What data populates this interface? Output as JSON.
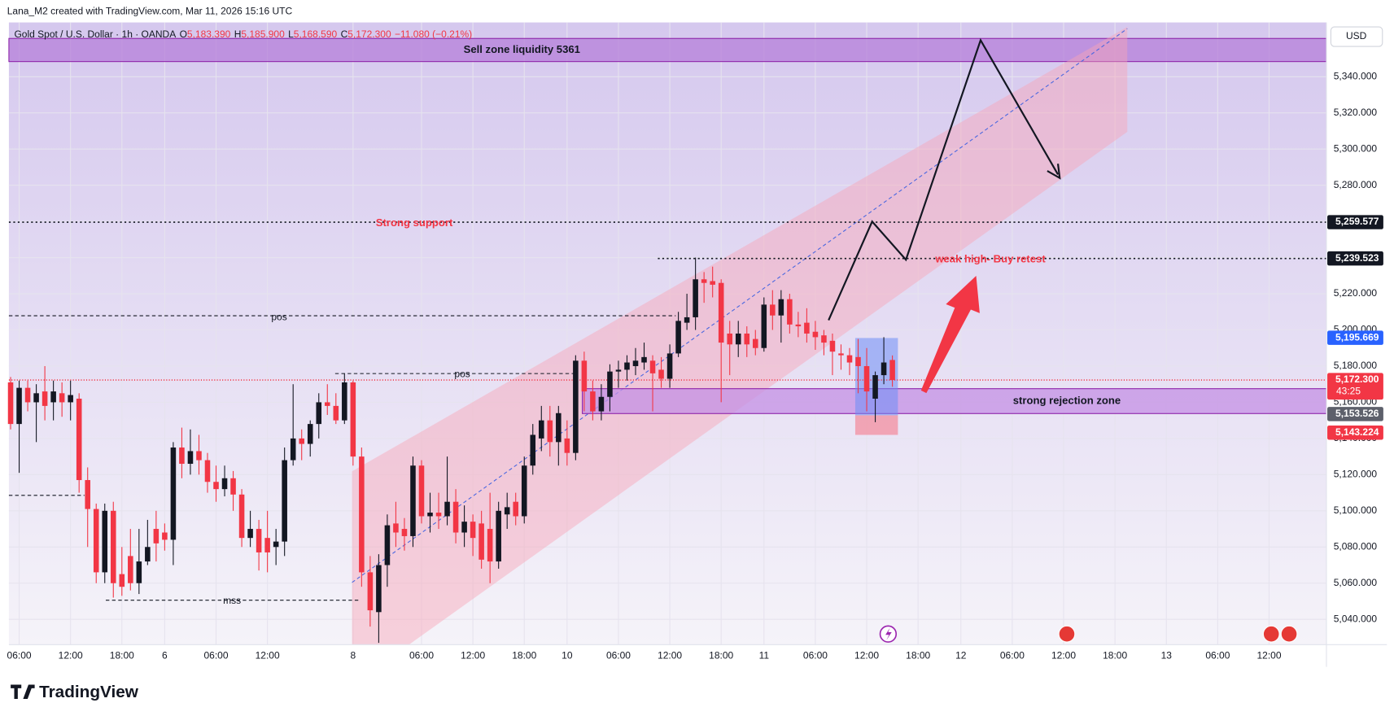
{
  "header": {
    "credit": "Lana_M2 created with TradingView.com, Mar 11, 2026 15:16 UTC",
    "symbol": "Gold Spot / U.S. Dollar · 1h · OANDA",
    "ohlc": [
      {
        "key": "O",
        "value": "5,183.390"
      },
      {
        "key": "H",
        "value": "5,185.900"
      },
      {
        "key": "L",
        "value": "5,168.590"
      },
      {
        "key": "C",
        "value": "5,172.300"
      }
    ],
    "change": "−11.080 (−0.21%)",
    "currency": "USD"
  },
  "chart_data": {
    "type": "candlestick",
    "x": [
      0,
      1,
      2,
      3,
      4,
      5,
      6,
      7,
      8,
      9,
      10,
      11,
      12,
      13,
      14,
      15,
      16,
      17,
      18,
      19,
      20,
      21,
      22,
      23,
      24,
      25,
      26,
      27,
      28,
      29,
      30,
      31,
      32,
      33,
      34,
      35,
      36,
      37,
      38,
      39,
      40,
      41,
      42,
      43,
      44,
      45,
      46,
      47,
      48,
      49,
      50,
      51,
      52,
      53,
      54,
      55,
      56,
      57,
      58,
      59,
      60,
      61,
      62,
      63,
      64,
      65,
      66,
      67,
      68,
      69,
      70,
      71,
      72,
      73,
      74,
      75,
      76,
      77,
      78,
      79,
      80,
      81,
      82,
      83,
      84,
      85,
      86,
      87,
      88,
      89,
      90,
      91,
      92,
      93,
      94,
      95,
      96,
      97,
      98,
      99,
      100,
      101,
      102,
      103
    ],
    "open": [
      5171,
      5148,
      5168,
      5160,
      5166,
      5160,
      5165,
      5160,
      5162,
      5117,
      5101,
      5066,
      5100,
      5065,
      5075,
      5060,
      5072,
      5090,
      5088,
      5084,
      5135,
      5126,
      5133,
      5128,
      5116,
      5112,
      5118,
      5109,
      5085,
      5090,
      5085,
      5080,
      5083,
      5128,
      5140,
      5137,
      5148,
      5160,
      5158,
      5150,
      5171,
      5130,
      5066,
      5044,
      5070,
      5093,
      5090,
      5086,
      5125,
      5097,
      5099,
      5097,
      5105,
      5088,
      5094,
      5093,
      5090,
      5072,
      5098,
      5105,
      5097,
      5125,
      5140,
      5150,
      5138,
      5140,
      5132,
      5183,
      5166,
      5155,
      5163,
      5177,
      5178,
      5180,
      5182,
      5183,
      5178,
      5173,
      5187,
      5204,
      5207,
      5228,
      5227,
      5226,
      5198,
      5192,
      5198,
      5195,
      5190,
      5214,
      5208,
      5217,
      5203,
      5204,
      5199,
      5197,
      5194,
      5187,
      5186,
      5185,
      5180,
      5162,
      5175,
      5183.39
    ],
    "high": [
      5174,
      5172,
      5172,
      5170,
      5180,
      5172,
      5171,
      5172,
      5165,
      5124,
      5104,
      5104,
      5105,
      5080,
      5090,
      5090,
      5095,
      5100,
      5093,
      5138,
      5146,
      5145,
      5142,
      5132,
      5125,
      5125,
      5122,
      5112,
      5100,
      5095,
      5100,
      5090,
      5135,
      5170,
      5145,
      5150,
      5165,
      5170,
      5165,
      5176,
      5172,
      5135,
      5075,
      5076,
      5098,
      5105,
      5096,
      5130,
      5128,
      5110,
      5110,
      5130,
      5112,
      5103,
      5098,
      5100,
      5110,
      5105,
      5110,
      5110,
      5130,
      5148,
      5158,
      5158,
      5158,
      5150,
      5186,
      5188,
      5172,
      5170,
      5181,
      5183,
      5186,
      5190,
      5193,
      5186,
      5185,
      5192,
      5210,
      5220,
      5240,
      5232,
      5235,
      5228,
      5205,
      5205,
      5202,
      5200,
      5218,
      5222,
      5222,
      5220,
      5210,
      5212,
      5205,
      5200,
      5198,
      5192,
      5190,
      5195,
      5190,
      5177,
      5196,
      5185.9
    ],
    "low": [
      5145,
      5121,
      5155,
      5138,
      5150,
      5150,
      5152,
      5150,
      5110,
      5080,
      5060,
      5060,
      5052,
      5053,
      5056,
      5054,
      5070,
      5072,
      5078,
      5070,
      5118,
      5120,
      5120,
      5110,
      5105,
      5108,
      5100,
      5080,
      5080,
      5067,
      5066,
      5070,
      5075,
      5125,
      5128,
      5130,
      5140,
      5153,
      5148,
      5148,
      5125,
      5058,
      5036,
      5027,
      5058,
      5080,
      5078,
      5080,
      5093,
      5088,
      5090,
      5092,
      5082,
      5080,
      5075,
      5068,
      5060,
      5068,
      5090,
      5092,
      5093,
      5120,
      5133,
      5130,
      5125,
      5125,
      5128,
      5155,
      5150,
      5150,
      5155,
      5168,
      5172,
      5175,
      5178,
      5155,
      5168,
      5168,
      5185,
      5200,
      5200,
      5215,
      5218,
      5160,
      5175,
      5185,
      5185,
      5186,
      5188,
      5200,
      5193,
      5198,
      5196,
      5193,
      5189,
      5186,
      5175,
      5178,
      5175,
      5165,
      5155,
      5149,
      5170,
      5168.59
    ],
    "close": [
      5148,
      5168,
      5160,
      5165,
      5158,
      5166,
      5160,
      5164,
      5117,
      5101,
      5066,
      5100,
      5060,
      5058,
      5060,
      5072,
      5080,
      5082,
      5084,
      5135,
      5126,
      5133,
      5128,
      5116,
      5112,
      5118,
      5109,
      5085,
      5090,
      5077,
      5077,
      5083,
      5128,
      5140,
      5137,
      5148,
      5160,
      5158,
      5150,
      5171,
      5130,
      5066,
      5045,
      5070,
      5092,
      5088,
      5086,
      5125,
      5097,
      5099,
      5097,
      5105,
      5088,
      5094,
      5085,
      5073,
      5072,
      5100,
      5102,
      5097,
      5125,
      5142,
      5150,
      5138,
      5154,
      5132,
      5183,
      5166,
      5155,
      5163,
      5177,
      5178,
      5182,
      5183,
      5185,
      5176,
      5173,
      5187,
      5205,
      5207,
      5228,
      5226,
      5225,
      5193,
      5192,
      5198,
      5192,
      5190,
      5214,
      5208,
      5217,
      5203,
      5202,
      5198,
      5196,
      5193,
      5188,
      5186,
      5182,
      5180,
      5166,
      5175,
      5182,
      5172.3
    ],
    "up_color": "#131722",
    "down_color": "#f23645",
    "xlim": [
      -0.2,
      153.7
    ],
    "xticks": [
      {
        "value": 1,
        "label": "06:00"
      },
      {
        "value": 7,
        "label": "12:00"
      },
      {
        "value": 13,
        "label": "18:00"
      },
      {
        "value": 18,
        "label": "6"
      },
      {
        "value": 24,
        "label": "06:00"
      },
      {
        "value": 30,
        "label": "12:00"
      },
      {
        "value": 40,
        "label": "8"
      },
      {
        "value": 48,
        "label": "06:00"
      },
      {
        "value": 54,
        "label": "12:00"
      },
      {
        "value": 60,
        "label": "18:00"
      },
      {
        "value": 65,
        "label": "10"
      },
      {
        "value": 71,
        "label": "06:00"
      },
      {
        "value": 77,
        "label": "12:00"
      },
      {
        "value": 83,
        "label": "18:00"
      },
      {
        "value": 88,
        "label": "11"
      },
      {
        "value": 94,
        "label": "06:00"
      },
      {
        "value": 100,
        "label": "12:00"
      },
      {
        "value": 106,
        "label": "18:00"
      },
      {
        "value": 111,
        "label": "12"
      },
      {
        "value": 117,
        "label": "06:00"
      },
      {
        "value": 123,
        "label": "12:00"
      },
      {
        "value": 129,
        "label": "18:00"
      },
      {
        "value": 135,
        "label": "13"
      },
      {
        "value": 141,
        "label": "06:00"
      },
      {
        "value": 147,
        "label": "12:00"
      }
    ],
    "ylim": [
      5026,
      5370
    ],
    "yticks": [
      {
        "value": 5040,
        "label": "5,040.000"
      },
      {
        "value": 5060,
        "label": "5,060.000"
      },
      {
        "value": 5080,
        "label": "5,080.000"
      },
      {
        "value": 5100,
        "label": "5,100.000"
      },
      {
        "value": 5120,
        "label": "5,120.000"
      },
      {
        "value": 5140,
        "label": "5,140.000"
      },
      {
        "value": 5160,
        "label": "5,160.000"
      },
      {
        "value": 5180,
        "label": "5,180.000"
      },
      {
        "value": 5200,
        "label": "5,200.000"
      },
      {
        "value": 5220,
        "label": "5,220.000"
      },
      {
        "value": 5240,
        "label": "5,240.000"
      },
      {
        "value": 5260,
        "label": "5,260.000"
      },
      {
        "value": 5280,
        "label": "5,280.000"
      },
      {
        "value": 5300,
        "label": "5,300.000"
      },
      {
        "value": 5320,
        "label": "5,320.000"
      },
      {
        "value": 5340,
        "label": "5,340.000"
      }
    ],
    "grid": true,
    "price_labels": [
      {
        "value": 5259.577,
        "label": "5,259.577",
        "color": "#131722"
      },
      {
        "value": 5239.523,
        "label": "5,239.523",
        "color": "#131722"
      },
      {
        "value": 5195.669,
        "label": "5,195.669",
        "color": "#2962ff"
      },
      {
        "value": 5172.3,
        "label": "5,172.300",
        "color": "#f23645"
      },
      {
        "value": 5153.526,
        "label": "5,153.526",
        "color": "#5d606b"
      },
      {
        "value": 5143.224,
        "label": "5,143.224",
        "color": "#f23645"
      }
    ],
    "countdown": "43:25",
    "annotations": {
      "sell_zone": "Sell zone liquidity 5361",
      "strong_support": "Strong support",
      "weak_high": "weak high- Buy retest",
      "pos_1": "pos",
      "pos_2": "pos",
      "mss": "mss",
      "rejection": "strong rejection zone"
    }
  },
  "footer": {
    "brand": "TradingView"
  }
}
